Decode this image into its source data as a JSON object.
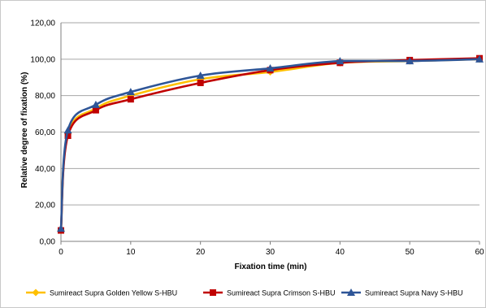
{
  "chart_data": {
    "type": "line",
    "xlabel": "Fixation time (min)",
    "ylabel": "Relative degree of fixation (%)",
    "x_ticks": [
      "0",
      "10",
      "20",
      "30",
      "40",
      "50",
      "60"
    ],
    "y_ticks": [
      "0,00",
      "20,00",
      "40,00",
      "60,00",
      "80,00",
      "100,00",
      "120,00"
    ],
    "xlim": [
      0,
      60
    ],
    "ylim": [
      0,
      120
    ],
    "grid": "horizontal",
    "legend_position": "bottom",
    "x": [
      0,
      1,
      5,
      10,
      20,
      30,
      40,
      50,
      60
    ],
    "series": [
      {
        "name": "Sumireact Supra Golden Yellow S-HBU",
        "color": "#FFC000",
        "marker": "diamond",
        "values": [
          6,
          59,
          73,
          80,
          89,
          93,
          98,
          99,
          100
        ]
      },
      {
        "name": "Sumireact Supra Crimson S-HBU",
        "color": "#C00000",
        "marker": "square",
        "values": [
          6,
          58,
          72,
          78,
          87,
          94,
          98,
          99.5,
          100.5
        ]
      },
      {
        "name": "Sumireact Supra Navy S-HBU",
        "color": "#2E5597",
        "marker": "triangle",
        "values": [
          7,
          61,
          75,
          82,
          91,
          95,
          99,
          99,
          100
        ]
      }
    ]
  }
}
